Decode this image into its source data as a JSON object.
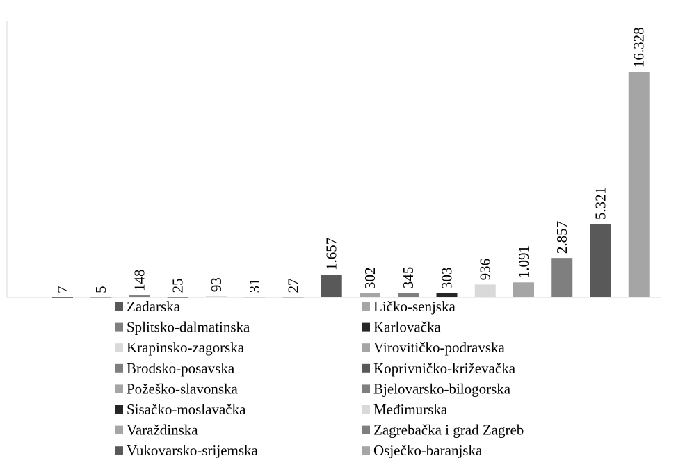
{
  "chart_data": {
    "type": "bar",
    "categories": [
      "Zadarska",
      "Ličko-senjska",
      "Splitsko-dalmatinska",
      "Karlovačka",
      "Krapinsko-zagorska",
      "Virovitičko-podravska",
      "Brodsko-posavska",
      "Koprivničko-križevačka",
      "Požeško-slavonska",
      "Bjelovarsko-bilogorska",
      "Sisačko-moslavačka",
      "Međimurska",
      "Varaždinska",
      "Zagrebačka i grad Zagreb",
      "Vukovarsko-srijemska",
      "Osječko-baranjska"
    ],
    "values": [
      7,
      5,
      148,
      25,
      93,
      31,
      27,
      1657,
      302,
      345,
      303,
      936,
      1091,
      2857,
      5321,
      16328
    ],
    "value_labels": [
      "7",
      "5",
      "148",
      "25",
      "93",
      "31",
      "27",
      "1.657",
      "302",
      "345",
      "303",
      "936",
      "1.091",
      "2.857",
      "5.321",
      "16.328"
    ],
    "colors": [
      "#595959",
      "#a5a5a5",
      "#7f7f7f",
      "#262626",
      "#d9d9d9",
      "#a5a5a5",
      "#7f7f7f",
      "#595959",
      "#a5a5a5",
      "#7f7f7f",
      "#262626",
      "#d9d9d9",
      "#a5a5a5",
      "#7f7f7f",
      "#595959",
      "#a5a5a5"
    ],
    "ylim": [
      0,
      20000
    ]
  }
}
